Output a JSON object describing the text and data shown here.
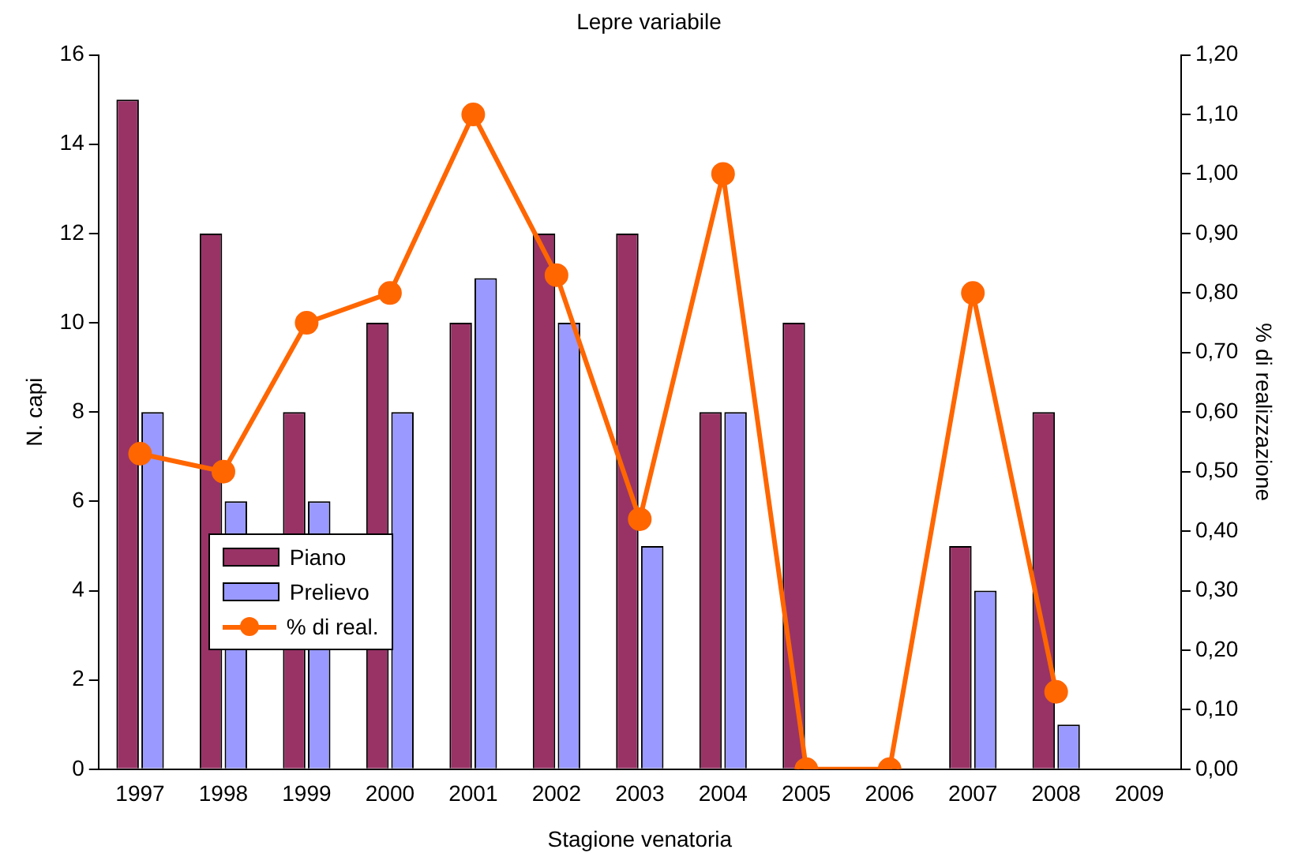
{
  "chart_data": {
    "type": "bar",
    "title": "Lepre variabile",
    "xlabel": "Stagione venatoria",
    "ylabel": "N. capi",
    "y2label": "% di realizzazione",
    "categories": [
      "1997",
      "1998",
      "1999",
      "2000",
      "2001",
      "2002",
      "2003",
      "2004",
      "2005",
      "2006",
      "2007",
      "2008",
      "2009"
    ],
    "series": [
      {
        "name": "Piano",
        "color": "#993366",
        "values": [
          15,
          12,
          8,
          10,
          10,
          12,
          12,
          8,
          10,
          null,
          5,
          8,
          null
        ]
      },
      {
        "name": "Prelievo",
        "color": "#9999ff",
        "values": [
          8,
          6,
          6,
          8,
          11,
          10,
          5,
          8,
          null,
          null,
          4,
          1,
          null
        ]
      },
      {
        "name": "% di real.",
        "type": "line",
        "axis": "y2",
        "color": "#ff6600",
        "marker": "circle",
        "values": [
          0.53,
          0.5,
          0.75,
          0.8,
          1.1,
          0.83,
          0.42,
          1.0,
          0,
          0,
          0.8,
          0.13,
          null
        ]
      }
    ],
    "ylim": [
      0,
      16
    ],
    "yticks": [
      0,
      2,
      4,
      6,
      8,
      10,
      12,
      14,
      16
    ],
    "y2lim": [
      0,
      1.2
    ],
    "y2ticks": [
      {
        "value": 0,
        "label": "0,00"
      },
      {
        "value": 0.1,
        "label": "0,10"
      },
      {
        "value": 0.2,
        "label": "0,20"
      },
      {
        "value": 0.3,
        "label": "0,30"
      },
      {
        "value": 0.4,
        "label": "0,40"
      },
      {
        "value": 0.5,
        "label": "0,50"
      },
      {
        "value": 0.6,
        "label": "0,60"
      },
      {
        "value": 0.7,
        "label": "0,70"
      },
      {
        "value": 0.8,
        "label": "0,80"
      },
      {
        "value": 0.9,
        "label": "0,90"
      },
      {
        "value": 1.0,
        "label": "1,00"
      },
      {
        "value": 1.1,
        "label": "1,10"
      },
      {
        "value": 1.2,
        "label": "1,20"
      }
    ],
    "grid": false,
    "legend": "left"
  }
}
